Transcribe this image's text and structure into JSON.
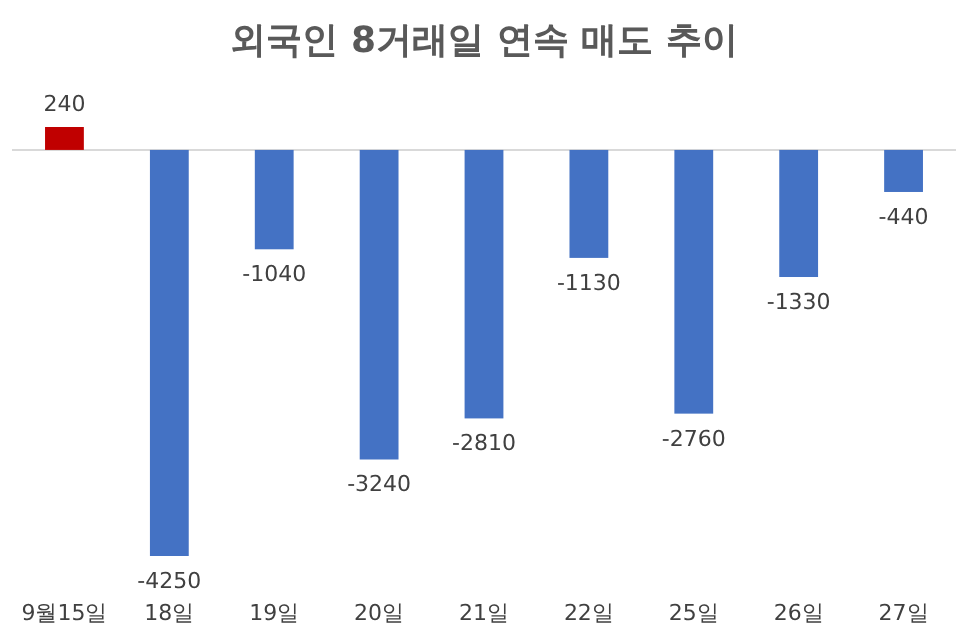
{
  "chart_data": {
    "type": "bar",
    "title": "외국인 8거래일 연속 매도 추이",
    "categories": [
      "9월15일",
      "18일",
      "19일",
      "20일",
      "21일",
      "22일",
      "25일",
      "26일",
      "27일"
    ],
    "values": [
      240,
      -4250,
      -1040,
      -3240,
      -2810,
      -1130,
      -2760,
      -1330,
      -440
    ],
    "colors": [
      "#c00000",
      "#4472c4",
      "#4472c4",
      "#4472c4",
      "#4472c4",
      "#4472c4",
      "#4472c4",
      "#4472c4",
      "#4472c4"
    ],
    "data_labels": true
  }
}
